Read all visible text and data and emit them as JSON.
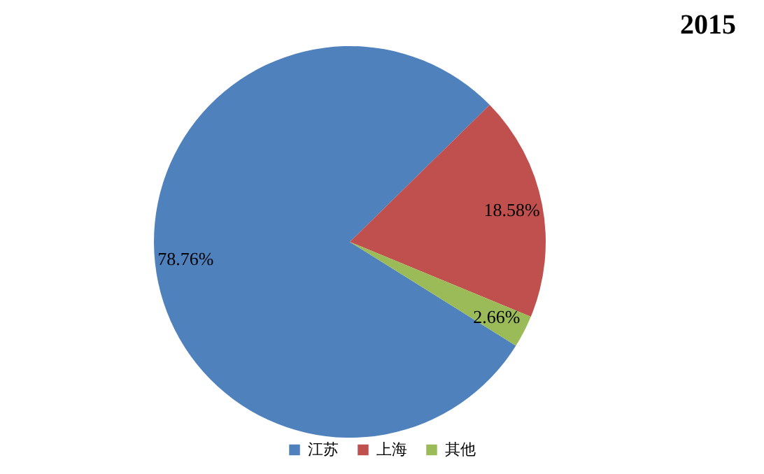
{
  "chart_data": {
    "type": "pie",
    "title": "2015",
    "categories": [
      "江苏",
      "上海",
      "其他"
    ],
    "values": [
      78.76,
      18.58,
      2.66
    ],
    "value_labels": [
      "78.76%",
      "18.58%",
      "2.66%"
    ],
    "colors": [
      "#4f81bd",
      "#c0504d",
      "#9bbb59"
    ],
    "legend": "bottom"
  }
}
